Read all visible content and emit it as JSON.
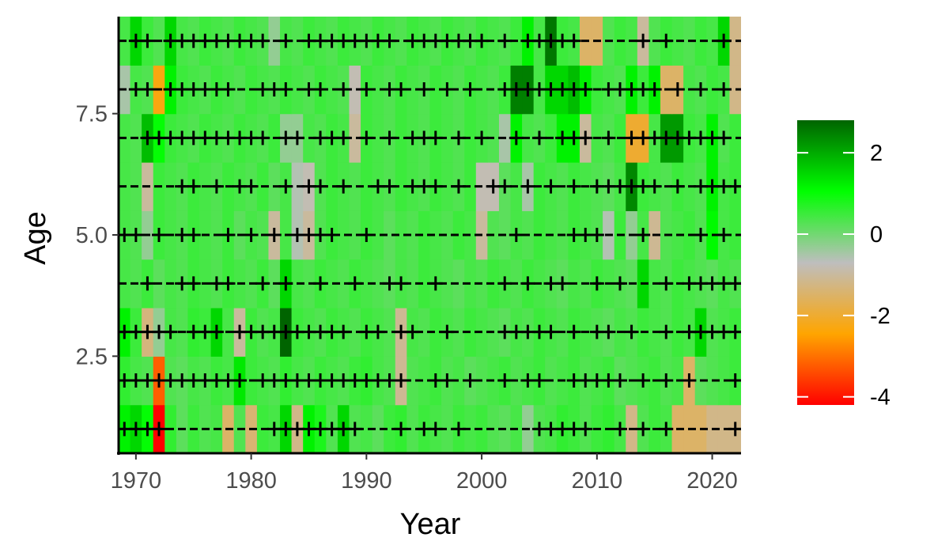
{
  "chart_data": {
    "type": "heatmap",
    "xlabel": "Year",
    "ylabel": "Age",
    "xlim": [
      1968.5,
      2022.5
    ],
    "ylim": [
      0.5,
      9.5
    ],
    "x_ticks": [
      1970,
      1980,
      1990,
      2000,
      2010,
      2020
    ],
    "x_tick_labels": [
      "1970",
      "1980",
      "1990",
      "2000",
      "2010",
      "2020"
    ],
    "y_ticks": [
      2.5,
      5.0,
      7.5
    ],
    "y_tick_labels": [
      "2.5",
      "5.0",
      "7.5"
    ],
    "legend": {
      "position": "right",
      "range": [
        -4.2,
        2.8
      ],
      "breaks": [
        2,
        0,
        -2,
        -4
      ],
      "break_labels": [
        "2",
        "0",
        "-2",
        "-4"
      ],
      "colors": [
        "#ff0000",
        "#ffa500",
        "#bebebe",
        "#00ff00",
        "#006400"
      ]
    },
    "years": [
      1969,
      1970,
      1971,
      1972,
      1973,
      1974,
      1975,
      1976,
      1977,
      1978,
      1979,
      1980,
      1981,
      1982,
      1983,
      1984,
      1985,
      1986,
      1987,
      1988,
      1989,
      1990,
      1991,
      1992,
      1993,
      1994,
      1995,
      1996,
      1997,
      1998,
      1999,
      2000,
      2001,
      2002,
      2003,
      2004,
      2005,
      2006,
      2007,
      2008,
      2009,
      2010,
      2011,
      2012,
      2013,
      2014,
      2015,
      2016,
      2017,
      2018,
      2019,
      2020,
      2021,
      2022
    ],
    "ages": [
      1,
      2,
      3,
      4,
      5,
      6,
      7,
      8,
      9
    ],
    "values": [
      [
        1.2,
        1.5,
        1.0,
        -4.2,
        0.6,
        0.2,
        0.5,
        0.3,
        0.4,
        -1.5,
        0.3,
        -1.4,
        0.5,
        0.4,
        1.5,
        -1.2,
        1.2,
        0.8,
        0.3,
        1.5,
        0.3,
        0.4,
        0.2,
        0.5,
        0.6,
        0.3,
        0.5,
        0.4,
        0.3,
        0.5,
        0.4,
        0.5,
        0.3,
        0.2,
        0.4,
        -0.3,
        0.3,
        0.4,
        0.6,
        0.5,
        0.3,
        0.5,
        0.6,
        0.4,
        -1.2,
        0.3,
        0.5,
        0.4,
        -1.5,
        -1.5,
        -1.5,
        -1.2,
        -1.2,
        -1.2
      ],
      [
        0.6,
        0.4,
        0.3,
        -3.2,
        0.3,
        0.2,
        0.4,
        0.3,
        0.5,
        0.4,
        1.3,
        0.5,
        0.4,
        0.3,
        0.6,
        0.4,
        0.3,
        0.5,
        0.4,
        0.3,
        0.5,
        0.6,
        0.4,
        0.3,
        -1.1,
        0.3,
        0.4,
        0.5,
        0.3,
        0.4,
        0.2,
        0.3,
        0.4,
        0.5,
        0.3,
        0.4,
        0.5,
        0.3,
        0.4,
        0.5,
        0.3,
        0.4,
        0.5,
        0.2,
        0.3,
        0.4,
        0.5,
        0.3,
        0.4,
        -1.5,
        0.2,
        0.3,
        0.4,
        0.5
      ],
      [
        1.2,
        0.5,
        -1.3,
        -0.3,
        0.4,
        0.3,
        0.6,
        0.5,
        1.5,
        0.4,
        -1.0,
        0.5,
        0.3,
        0.4,
        2.8,
        0.5,
        0.4,
        0.3,
        0.5,
        0.4,
        0.3,
        0.5,
        0.4,
        0.3,
        -1.1,
        0.4,
        0.3,
        0.5,
        0.4,
        0.3,
        0.5,
        0.4,
        0.3,
        0.2,
        0.4,
        0.3,
        0.5,
        0.4,
        0.3,
        0.5,
        0.4,
        0.3,
        0.2,
        0.4,
        0.3,
        0.5,
        0.4,
        0.3,
        0.5,
        0.4,
        1.5,
        0.3,
        0.4,
        0.5
      ],
      [
        0.4,
        0.3,
        0.5,
        0.2,
        0.4,
        0.3,
        0.5,
        0.4,
        0.3,
        0.5,
        0.4,
        0.3,
        0.5,
        0.2,
        1.5,
        0.4,
        0.3,
        0.5,
        0.4,
        0.3,
        0.5,
        0.4,
        0.3,
        0.2,
        0.4,
        0.3,
        0.5,
        0.4,
        0.3,
        0.2,
        0.4,
        0.3,
        0.5,
        0.4,
        0.3,
        0.5,
        0.4,
        0.3,
        0.2,
        0.4,
        0.3,
        0.5,
        0.4,
        0.3,
        0.2,
        1.5,
        0.4,
        0.3,
        0.5,
        0.4,
        0.3,
        0.2,
        0.4,
        0.3
      ],
      [
        0.4,
        0.3,
        -0.3,
        0.5,
        0.4,
        0.3,
        0.5,
        0.4,
        0.3,
        0.5,
        0.2,
        0.4,
        0.3,
        -1.0,
        0.4,
        -0.6,
        -1.0,
        0.3,
        0.5,
        0.4,
        0.3,
        0.5,
        0.4,
        0.2,
        0.4,
        0.3,
        0.5,
        0.4,
        0.3,
        0.5,
        0.4,
        -1.0,
        0.3,
        0.2,
        0.4,
        0.3,
        0.5,
        0.4,
        0.3,
        0.5,
        0.4,
        0.3,
        -0.6,
        0.5,
        -0.3,
        0.4,
        -1.1,
        0.3,
        0.4,
        0.5,
        0.3,
        1.1,
        0.4,
        0.5
      ],
      [
        0.4,
        0.3,
        -1.0,
        0.5,
        0.4,
        0.3,
        0.5,
        0.4,
        0.3,
        0.5,
        0.4,
        0.3,
        0.5,
        0.2,
        0.4,
        -0.6,
        -0.8,
        0.3,
        0.5,
        0.4,
        0.3,
        0.5,
        0.4,
        0.3,
        0.5,
        0.4,
        0.3,
        0.5,
        0.4,
        0.3,
        0.5,
        -0.8,
        -0.8,
        0.2,
        0.4,
        -0.5,
        0.5,
        0.4,
        0.3,
        0.5,
        0.4,
        0.3,
        0.2,
        0.4,
        2.4,
        0.5,
        0.4,
        0.3,
        0.5,
        0.4,
        0.3,
        1.2,
        0.4,
        0.5
      ],
      [
        0.4,
        0.3,
        1.8,
        1.0,
        0.5,
        0.4,
        0.3,
        0.5,
        0.4,
        0.3,
        0.5,
        0.4,
        0.3,
        0.5,
        -0.3,
        -0.3,
        0.4,
        0.3,
        0.5,
        0.4,
        -1.0,
        0.5,
        0.4,
        0.3,
        0.5,
        0.4,
        0.3,
        0.5,
        0.4,
        0.3,
        0.5,
        0.4,
        0.3,
        -0.5,
        1.2,
        0.4,
        0.3,
        0.5,
        1.2,
        1.2,
        -1.0,
        0.4,
        0.3,
        0.5,
        -2.0,
        -2.0,
        0.4,
        2.2,
        2.2,
        0.5,
        0.4,
        1.2,
        0.3,
        0.5
      ],
      [
        -0.5,
        0.4,
        0.3,
        -2.3,
        1.2,
        0.5,
        0.4,
        0.3,
        0.5,
        0.4,
        0.3,
        0.5,
        0.4,
        0.3,
        0.5,
        0.4,
        0.3,
        0.5,
        0.4,
        0.3,
        -0.8,
        0.5,
        0.4,
        0.3,
        0.5,
        0.4,
        0.3,
        0.5,
        0.4,
        0.3,
        0.5,
        0.4,
        0.3,
        0.5,
        2.5,
        2.5,
        0.4,
        1.5,
        1.5,
        1.8,
        1.2,
        0.5,
        0.4,
        0.3,
        1.2,
        0.5,
        1.2,
        -1.5,
        -1.5,
        0.4,
        0.3,
        0.5,
        0.4,
        -1.2
      ],
      [
        0.4,
        1.5,
        0.5,
        0.3,
        1.5,
        0.4,
        0.3,
        0.5,
        0.4,
        0.3,
        0.5,
        0.4,
        0.3,
        -0.3,
        0.4,
        0.3,
        0.5,
        0.4,
        0.3,
        0.5,
        0.4,
        0.3,
        0.5,
        0.4,
        0.3,
        0.5,
        0.4,
        0.3,
        0.5,
        0.4,
        0.3,
        0.5,
        0.4,
        0.3,
        0.5,
        1.2,
        0.4,
        2.6,
        0.5,
        0.4,
        -1.5,
        -1.5,
        0.3,
        0.5,
        0.4,
        -1.0,
        0.3,
        0.5,
        0.4,
        0.3,
        0.5,
        0.4,
        1.5,
        -1.2
      ]
    ],
    "markers": [
      [
        1969,
        1970,
        1971,
        1972,
        1982,
        1983,
        1984,
        1985,
        1986,
        1987,
        1988,
        1989,
        1993,
        1995,
        1996,
        1998,
        2005,
        2006,
        2007,
        2008,
        2009,
        2012,
        2014,
        2016,
        2022
      ],
      [
        1969,
        1970,
        1971,
        1972,
        1973,
        1974,
        1975,
        1976,
        1977,
        1978,
        1979,
        1981,
        1982,
        1983,
        1984,
        1985,
        1986,
        1987,
        1988,
        1989,
        1990,
        1991,
        1992,
        1993,
        1996,
        1997,
        1999,
        2002,
        2004,
        2005,
        2008,
        2009,
        2010,
        2011,
        2012,
        2014,
        2016,
        2018,
        2022
      ],
      [
        1969,
        1970,
        1971,
        1972,
        1973,
        1975,
        1976,
        1977,
        1979,
        1980,
        1981,
        1982,
        1983,
        1984,
        1985,
        1986,
        1987,
        1988,
        1990,
        1991,
        1993,
        1994,
        1997,
        2002,
        2003,
        2004,
        2005,
        2006,
        2008,
        2010,
        2011,
        2013,
        2016,
        2018,
        2019,
        2020,
        2021,
        2022
      ],
      [
        1971,
        1974,
        1975,
        1977,
        1978,
        1981,
        1983,
        1986,
        1989,
        1992,
        1993,
        1996,
        2002,
        2004,
        2006,
        2007,
        2010,
        2012,
        2016,
        2018,
        2019,
        2020,
        2021,
        2022
      ],
      [
        1969,
        1970,
        1972,
        1974,
        1975,
        1978,
        1980,
        1982,
        1984,
        1985,
        1986,
        1987,
        1990,
        2003,
        2008,
        2009,
        2010,
        2014,
        2019,
        2021
      ],
      [
        1974,
        1975,
        1977,
        1979,
        1980,
        1983,
        1985,
        1986,
        1988,
        1991,
        1992,
        1994,
        1995,
        1996,
        1998,
        2001,
        2002,
        2004,
        2006,
        2008,
        2010,
        2011,
        2012,
        2013,
        2014,
        2015,
        2017,
        2019,
        2020,
        2021,
        2022
      ],
      [
        1971,
        1972,
        1973,
        1974,
        1975,
        1976,
        1977,
        1978,
        1979,
        1980,
        1981,
        1983,
        1984,
        1986,
        1987,
        1988,
        1990,
        1992,
        1994,
        1995,
        1996,
        1998,
        2000,
        2003,
        2005,
        2007,
        2008,
        2009,
        2011,
        2013,
        2014,
        2015,
        2016,
        2017,
        2018,
        2019,
        2020,
        2021
      ],
      [
        1970,
        1971,
        1973,
        1974,
        1975,
        1976,
        1977,
        1978,
        1981,
        1982,
        1983,
        1985,
        1986,
        1988,
        1990,
        1992,
        1993,
        1995,
        1997,
        1999,
        2002,
        2003,
        2004,
        2005,
        2006,
        2007,
        2008,
        2009,
        2011,
        2012,
        2013,
        2014,
        2015,
        2017,
        2019,
        2021
      ],
      [
        1970,
        1971,
        1973,
        1974,
        1975,
        1976,
        1977,
        1978,
        1979,
        1980,
        1981,
        1983,
        1985,
        1986,
        1987,
        1988,
        1989,
        1990,
        1991,
        1992,
        1994,
        1995,
        1996,
        1997,
        1998,
        1999,
        2000,
        2002,
        2004,
        2005,
        2006,
        2007,
        2008,
        2014,
        2016,
        2021
      ]
    ]
  }
}
